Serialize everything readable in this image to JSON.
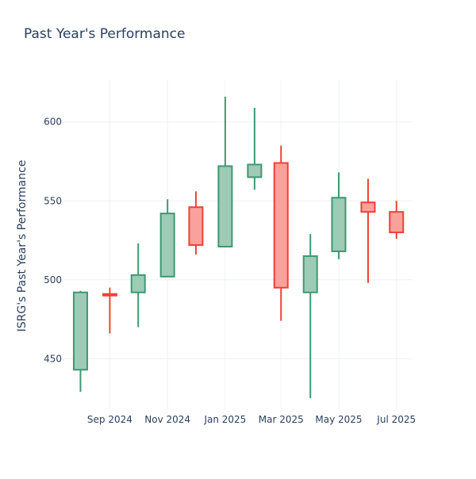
{
  "chart_data": {
    "type": "candlestick",
    "title": "Past Year's Performance",
    "xlabel": "",
    "ylabel": "ISRG's Past Year's Performance",
    "ylim": [
      418,
      627
    ],
    "y_ticks": [
      450,
      500,
      550,
      600
    ],
    "x_ticks": [
      {
        "date": "2024-09-01",
        "label": "Sep 2024"
      },
      {
        "date": "2024-11-01",
        "label": "Nov 2024"
      },
      {
        "date": "2025-01-01",
        "label": "Jan 2025"
      },
      {
        "date": "2025-03-01",
        "label": "Mar 2025"
      },
      {
        "date": "2025-05-01",
        "label": "May 2025"
      },
      {
        "date": "2025-07-01",
        "label": "Jul 2025"
      }
    ],
    "xlim": [
      "2024-07-14",
      "2025-07-18"
    ],
    "grid": true,
    "increasing_color": "#3d9970",
    "increasing_fill": "#9ecbb6",
    "decreasing_color": "#ef4136",
    "decreasing_fill": "#f9a19b",
    "candles": [
      {
        "date": "2024-08-01",
        "open": 443,
        "high": 493,
        "low": 429,
        "close": 492
      },
      {
        "date": "2024-09-01",
        "open": 491,
        "high": 495,
        "low": 466,
        "close": 490
      },
      {
        "date": "2024-10-01",
        "open": 492,
        "high": 523,
        "low": 470,
        "close": 503
      },
      {
        "date": "2024-11-01",
        "open": 502,
        "high": 551,
        "low": 502,
        "close": 542
      },
      {
        "date": "2024-12-01",
        "open": 546,
        "high": 556,
        "low": 516,
        "close": 522
      },
      {
        "date": "2025-01-01",
        "open": 521,
        "high": 616,
        "low": 521,
        "close": 572
      },
      {
        "date": "2025-02-01",
        "open": 565,
        "high": 609,
        "low": 557,
        "close": 573
      },
      {
        "date": "2025-03-01",
        "open": 574,
        "high": 585,
        "low": 474,
        "close": 495
      },
      {
        "date": "2025-04-01",
        "open": 492,
        "high": 529,
        "low": 425,
        "close": 515
      },
      {
        "date": "2025-05-01",
        "open": 518,
        "high": 568,
        "low": 513,
        "close": 552
      },
      {
        "date": "2025-06-01",
        "open": 549,
        "high": 564,
        "low": 498,
        "close": 543
      },
      {
        "date": "2025-07-01",
        "open": 543,
        "high": 550,
        "low": 526,
        "close": 530
      }
    ]
  }
}
